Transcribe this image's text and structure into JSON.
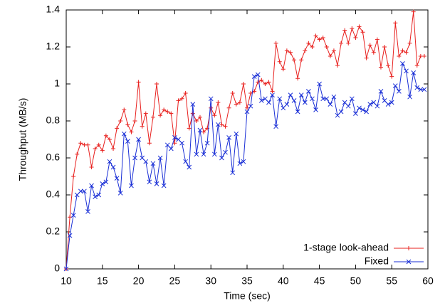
{
  "chart_data": {
    "type": "line",
    "xlabel": "Time (sec)",
    "ylabel": "Throughput (MB/s)",
    "xlim": [
      10,
      60
    ],
    "ylim": [
      0,
      1.4
    ],
    "xticks": [
      10,
      15,
      20,
      25,
      30,
      35,
      40,
      45,
      50,
      55,
      60
    ],
    "yticks": [
      0,
      0.2,
      0.4,
      0.6,
      0.8,
      1,
      1.2,
      1.4
    ],
    "legend": "lower right",
    "x": [
      10,
      10.5,
      11,
      11.5,
      12,
      12.5,
      13,
      13.5,
      14,
      14.5,
      15,
      15.5,
      16,
      16.5,
      17,
      17.5,
      18,
      18.5,
      19,
      19.5,
      20,
      20.5,
      21,
      21.5,
      22,
      22.5,
      23,
      23.5,
      24,
      24.5,
      25,
      25.5,
      26,
      26.5,
      27,
      27.5,
      28,
      28.5,
      29,
      29.5,
      30,
      30.5,
      31,
      31.5,
      32,
      32.5,
      33,
      33.5,
      34,
      34.5,
      35,
      35.5,
      36,
      36.5,
      37,
      37.5,
      38,
      38.5,
      39,
      39.5,
      40,
      40.5,
      41,
      41.5,
      42,
      42.5,
      43,
      43.5,
      44,
      44.5,
      45,
      45.5,
      46,
      46.5,
      47,
      47.5,
      48,
      48.5,
      49,
      49.5,
      50,
      50.5,
      51,
      51.5,
      52,
      52.5,
      53,
      53.5,
      54,
      54.5,
      55,
      55.5,
      56,
      56.5,
      57,
      57.5,
      58,
      58.5,
      59,
      59.5
    ],
    "series": [
      {
        "name": "1-stage look-ahead",
        "color": "#e8201e",
        "marker": "+",
        "values": [
          0,
          0.28,
          0.5,
          0.62,
          0.68,
          0.67,
          0.67,
          0.55,
          0.65,
          0.67,
          0.64,
          0.72,
          0.7,
          0.65,
          0.76,
          0.8,
          0.86,
          0.78,
          0.74,
          0.8,
          1.01,
          0.77,
          0.84,
          0.68,
          0.82,
          1.0,
          0.83,
          0.86,
          0.85,
          0.84,
          0.68,
          0.91,
          0.92,
          0.95,
          0.76,
          0.84,
          0.8,
          0.82,
          0.74,
          0.76,
          0.87,
          0.83,
          0.9,
          0.78,
          0.77,
          0.87,
          0.95,
          0.89,
          0.9,
          1.0,
          0.87,
          0.95,
          0.96,
          1.01,
          1.02,
          1.0,
          1.01,
          0.96,
          1.22,
          1.12,
          1.08,
          1.18,
          1.17,
          1.13,
          1.03,
          1.13,
          1.18,
          1.22,
          1.2,
          1.26,
          1.24,
          1.25,
          1.2,
          1.15,
          1.18,
          1.1,
          1.22,
          1.29,
          1.22,
          1.3,
          1.25,
          1.31,
          1.28,
          1.14,
          1.21,
          1.17,
          1.24,
          1.09,
          1.2,
          1.1,
          1.04,
          1.33,
          1.15,
          1.18,
          1.17,
          1.22,
          1.39,
          1.1,
          1.15,
          1.15
        ]
      },
      {
        "name": "Fixed",
        "color": "#1a2fd6",
        "marker": "x",
        "values": [
          0,
          0.18,
          0.29,
          0.4,
          0.42,
          0.42,
          0.31,
          0.45,
          0.39,
          0.4,
          0.46,
          0.47,
          0.58,
          0.55,
          0.49,
          0.41,
          0.73,
          0.69,
          0.45,
          0.6,
          0.7,
          0.6,
          0.58,
          0.47,
          0.57,
          0.46,
          0.6,
          0.45,
          0.67,
          0.65,
          0.71,
          0.7,
          0.68,
          0.58,
          0.55,
          0.89,
          0.62,
          0.75,
          0.62,
          0.68,
          0.92,
          0.62,
          0.78,
          0.6,
          0.63,
          0.71,
          0.52,
          0.73,
          0.57,
          0.58,
          0.85,
          0.88,
          1.04,
          1.05,
          0.91,
          0.92,
          0.9,
          0.94,
          0.77,
          0.92,
          0.87,
          0.89,
          0.94,
          0.91,
          0.85,
          0.94,
          0.9,
          0.96,
          0.92,
          0.86,
          1.0,
          0.92,
          0.92,
          0.89,
          0.93,
          0.83,
          0.85,
          0.9,
          0.88,
          0.92,
          0.84,
          0.87,
          0.86,
          0.85,
          0.89,
          0.9,
          0.88,
          0.96,
          0.91,
          0.89,
          0.9,
          0.99,
          0.96,
          1.11,
          1.07,
          0.93,
          1.06,
          0.98,
          0.97,
          0.97
        ]
      }
    ]
  }
}
